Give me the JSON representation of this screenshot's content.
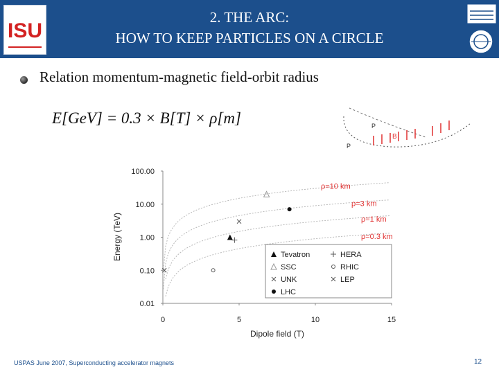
{
  "slide": {
    "title_line1": "2. THE ARC:",
    "title_line2": "HOW TO KEEP PARTICLES ON A CIRCLE",
    "bullet": "Relation momentum-magnetic field-orbit radius",
    "formula": "E[GeV] = 0.3 × B[T] × ρ[m]",
    "footer": "USPAS June 2007,  Superconducting accelerator magnets",
    "page_number": "12",
    "logo_left_text": "ISU",
    "arc_labels": [
      "P",
      "B",
      "P"
    ],
    "colors": {
      "header": "#1c4f8c",
      "radius_labels": "#e03030",
      "footer": "#1c4f8c"
    }
  },
  "chart_data": {
    "type": "scatter",
    "xlabel": "Dipole field (T)",
    "ylabel": "Energy (TeV)",
    "xlim": [
      0,
      15
    ],
    "ylim": [
      0.01,
      100
    ],
    "yscale": "log",
    "x_ticks": [
      "0",
      "5",
      "10",
      "15"
    ],
    "y_ticks": [
      "0.01",
      "0.10",
      "1.00",
      "10.00",
      "100.00"
    ],
    "radius_lines": [
      {
        "label": "ρ=10 km",
        "slope_tev_per_t": 3.0
      },
      {
        "label": "ρ=3 km",
        "slope_tev_per_t": 0.9
      },
      {
        "label": "ρ=1 km",
        "slope_tev_per_t": 0.3
      },
      {
        "label": "ρ=0.3 km",
        "slope_tev_per_t": 0.09
      }
    ],
    "points": [
      {
        "name": "Tevatron",
        "marker": "filled-triangle",
        "x": 4.4,
        "y": 1.0
      },
      {
        "name": "HERA",
        "marker": "plus",
        "x": 4.7,
        "y": 0.82
      },
      {
        "name": "SSC",
        "marker": "open-triangle",
        "x": 6.8,
        "y": 20
      },
      {
        "name": "RHIC",
        "marker": "open-circle",
        "x": 3.3,
        "y": 0.1
      },
      {
        "name": "UNK",
        "marker": "cross",
        "x": 5.0,
        "y": 3.0
      },
      {
        "name": "LEP",
        "marker": "cross",
        "x": 0.1,
        "y": 0.1
      },
      {
        "name": "LHC",
        "marker": "filled-circle",
        "x": 8.3,
        "y": 7.0
      }
    ],
    "legend": [
      {
        "label": "Tevatron",
        "marker": "filled-triangle"
      },
      {
        "label": "HERA",
        "marker": "plus"
      },
      {
        "label": "SSC",
        "marker": "open-triangle"
      },
      {
        "label": "RHIC",
        "marker": "open-circle"
      },
      {
        "label": "UNK",
        "marker": "cross"
      },
      {
        "label": "LEP",
        "marker": "cross"
      },
      {
        "label": "LHC",
        "marker": "filled-circle"
      }
    ],
    "legend_position": "bottom-right",
    "grid": false
  }
}
